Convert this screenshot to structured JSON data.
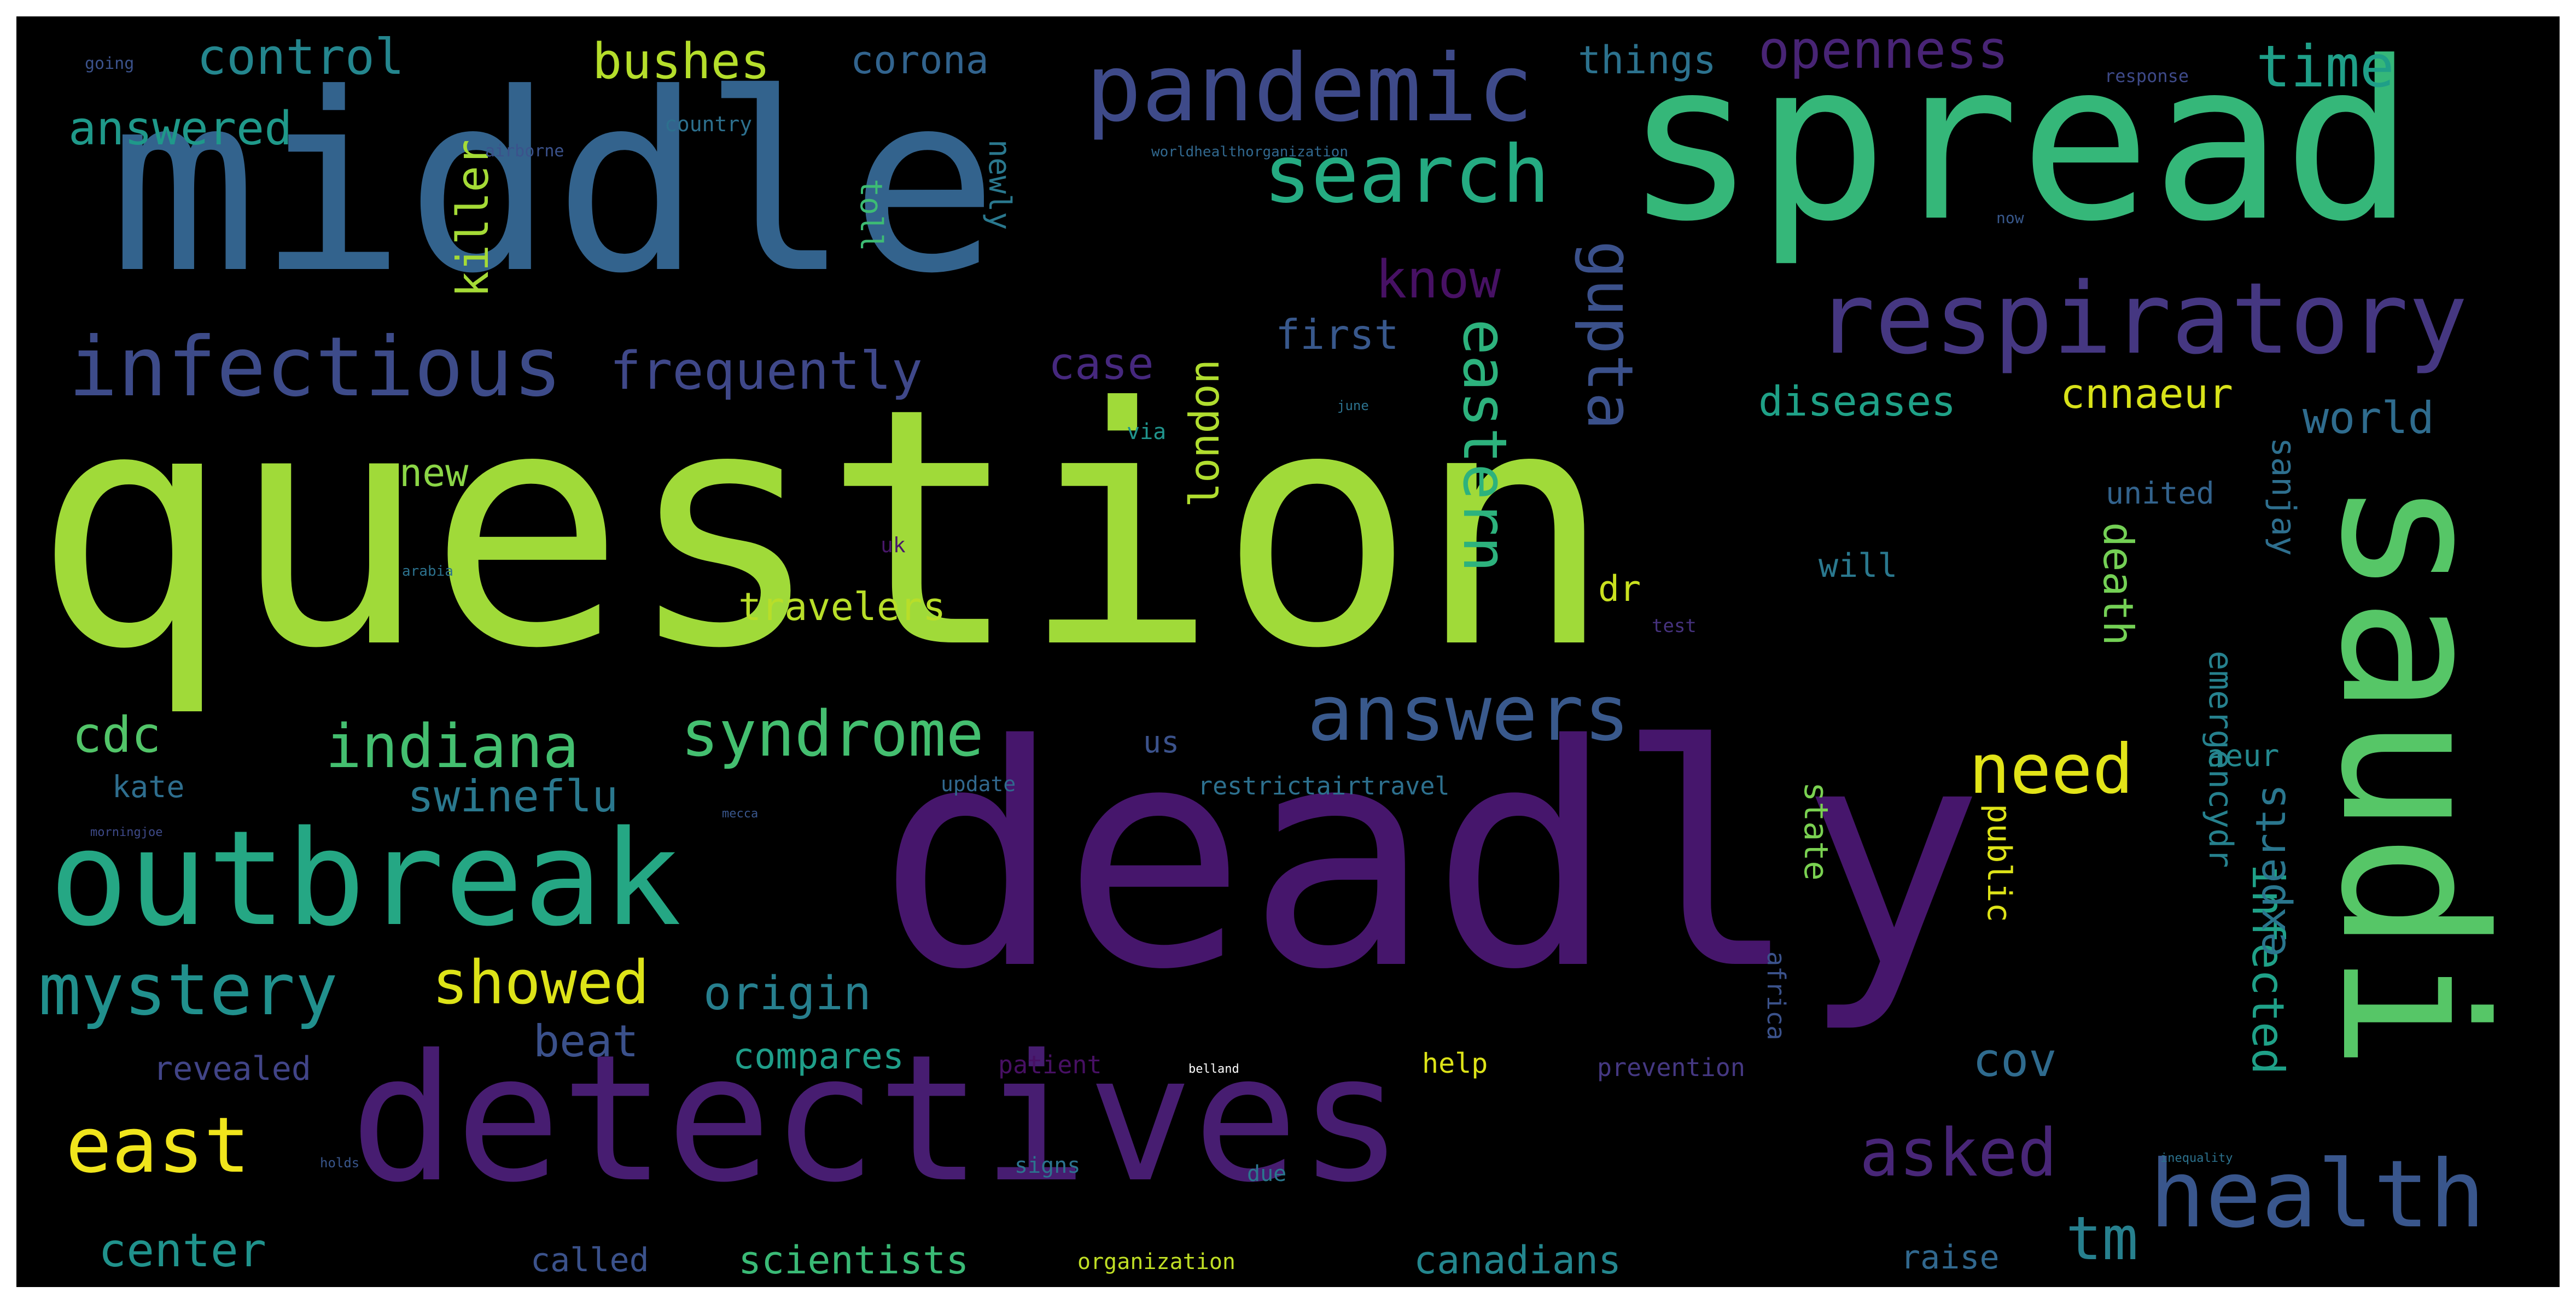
{
  "words": [
    {
      "text": "question",
      "color": "#a0da39"
    },
    {
      "text": "deadly",
      "color": "#46166c"
    },
    {
      "text": "middle",
      "color": "#33638d"
    },
    {
      "text": "spread",
      "color": "#35b779"
    },
    {
      "text": "detectives",
      "color": "#471d71"
    },
    {
      "text": "saudi",
      "color": "#56c667"
    },
    {
      "text": "outbreak",
      "color": "#25a784"
    },
    {
      "text": "respiratory",
      "color": "#453781"
    },
    {
      "text": "pandemic",
      "color": "#3e4a89"
    },
    {
      "text": "infectious",
      "color": "#3d4b89"
    },
    {
      "text": "health",
      "color": "#39568c"
    },
    {
      "text": "answers",
      "color": "#39598c"
    },
    {
      "text": "search",
      "color": "#25ab82"
    },
    {
      "text": "mystery",
      "color": "#21908d"
    },
    {
      "text": "syndrome",
      "color": "#44bf70"
    },
    {
      "text": "east",
      "color": "#f0e51c"
    },
    {
      "text": "indiana",
      "color": "#44bf70"
    },
    {
      "text": "gupta",
      "color": "#3b518b"
    },
    {
      "text": "eastern",
      "color": "#2db27d"
    },
    {
      "text": "frequently",
      "color": "#3f4889"
    },
    {
      "text": "need",
      "color": "#e2e418"
    },
    {
      "text": "asked",
      "color": "#482677"
    },
    {
      "text": "showed",
      "color": "#dde318"
    },
    {
      "text": "tm",
      "color": "#27808e"
    },
    {
      "text": "control",
      "color": "#24868e"
    },
    {
      "text": "time",
      "color": "#1f9f88"
    },
    {
      "text": "openness",
      "color": "#482475"
    },
    {
      "text": "bushes",
      "color": "#b5de2b"
    },
    {
      "text": "answered",
      "color": "#1f998a"
    },
    {
      "text": "know",
      "color": "#471164"
    },
    {
      "text": "origin",
      "color": "#277f8e"
    },
    {
      "text": "center",
      "color": "#20928c"
    },
    {
      "text": "cdc",
      "color": "#52c569"
    },
    {
      "text": "swineflu",
      "color": "#2a788e"
    },
    {
      "text": "killer",
      "color": "#a5db36"
    },
    {
      "text": "beat",
      "color": "#3b518b"
    },
    {
      "text": "case",
      "color": "#46287e"
    },
    {
      "text": "first",
      "color": "#38588c"
    },
    {
      "text": "world",
      "color": "#2f6c8e"
    },
    {
      "text": "diseases",
      "color": "#1fa187"
    },
    {
      "text": "cnnaeur",
      "color": "#d8e219"
    },
    {
      "text": "cov",
      "color": "#2f6b8e"
    },
    {
      "text": "infected",
      "color": "#1fa188"
    },
    {
      "text": "experts",
      "color": "#2a768e"
    },
    {
      "text": "death",
      "color": "#74d055"
    },
    {
      "text": "london",
      "color": "#b0dd2f"
    },
    {
      "text": "corona",
      "color": "#32648e"
    },
    {
      "text": "things",
      "color": "#2c728e"
    },
    {
      "text": "travelers",
      "color": "#b8de29"
    },
    {
      "text": "compares",
      "color": "#1f9e89"
    },
    {
      "text": "scientists",
      "color": "#3aba76"
    },
    {
      "text": "canadians",
      "color": "#24868e"
    },
    {
      "text": "new",
      "color": "#8bd646"
    },
    {
      "text": "dr",
      "color": "#cae11f"
    },
    {
      "text": "sanjay",
      "color": "#2e6f8e"
    },
    {
      "text": "emergencydr",
      "color": "#26818e"
    },
    {
      "text": "public",
      "color": "#dde318"
    },
    {
      "text": "state",
      "color": "#7ad151"
    },
    {
      "text": "revealed",
      "color": "#414487"
    },
    {
      "text": "called",
      "color": "#3b528b"
    },
    {
      "text": "raise",
      "color": "#31688e"
    },
    {
      "text": "kate",
      "color": "#2e6e8e"
    },
    {
      "text": "aeur",
      "color": "#23888e"
    },
    {
      "text": "united",
      "color": "#33638d"
    },
    {
      "text": "toll",
      "color": "#3dbc74"
    },
    {
      "text": "newly",
      "color": "#2a788e"
    },
    {
      "text": "will",
      "color": "#2a788e"
    },
    {
      "text": "us",
      "color": "#3b528b"
    },
    {
      "text": "restrictairtravel",
      "color": "#2d708e"
    },
    {
      "text": "organization",
      "color": "#c0df25"
    },
    {
      "text": "prevention",
      "color": "#453882"
    },
    {
      "text": "help",
      "color": "#dde318"
    },
    {
      "text": "patient",
      "color": "#471063"
    },
    {
      "text": "africa",
      "color": "#3b528b"
    },
    {
      "text": "due",
      "color": "#2a778e"
    },
    {
      "text": "signs",
      "color": "#2c738e"
    },
    {
      "text": "update",
      "color": "#31688e"
    },
    {
      "text": "via",
      "color": "#20938c"
    },
    {
      "text": "uk",
      "color": "#481769"
    },
    {
      "text": "test",
      "color": "#46327e"
    },
    {
      "text": "country",
      "color": "#2d708e"
    },
    {
      "text": "airborne",
      "color": "#3b528b"
    },
    {
      "text": "worldhealthorganization",
      "color": "#31688e"
    },
    {
      "text": "response",
      "color": "#3e4a89"
    },
    {
      "text": "now",
      "color": "#38588c"
    },
    {
      "text": "going",
      "color": "#3b528b"
    },
    {
      "text": "arabia",
      "color": "#2c728e"
    },
    {
      "text": "june",
      "color": "#2c728e"
    },
    {
      "text": "mecca",
      "color": "#39568c"
    },
    {
      "text": "morningjoe",
      "color": "#3e4a89"
    },
    {
      "text": "holds",
      "color": "#39568c"
    },
    {
      "text": "belland",
      "color": "#ffffff"
    },
    {
      "text": "inequality",
      "color": "#2c728e"
    }
  ]
}
